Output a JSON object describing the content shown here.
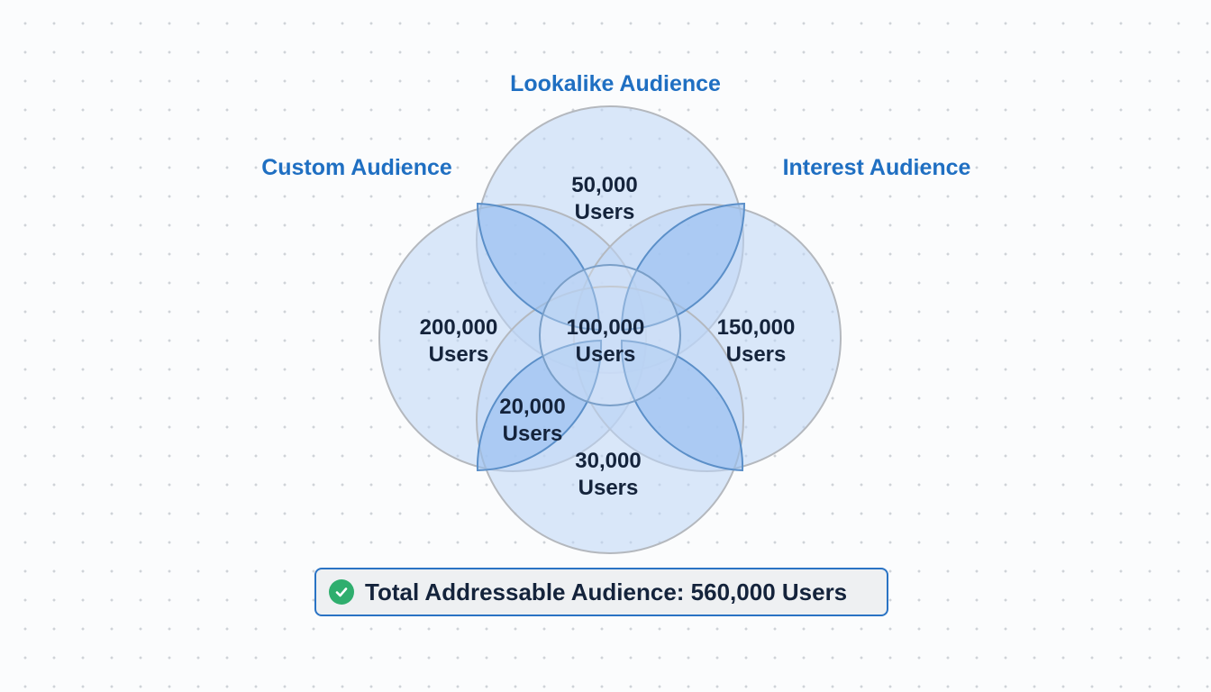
{
  "labels": {
    "top": "Lookalike Audience",
    "left": "Custom Audience",
    "right": "Interest Audience"
  },
  "values": {
    "top": {
      "n": "50,000",
      "u": "Users"
    },
    "left": {
      "n": "200,000",
      "u": "Users"
    },
    "center": {
      "n": "100,000",
      "u": "Users"
    },
    "right": {
      "n": "150,000",
      "u": "Users"
    },
    "bottom_left": {
      "n": "20,000",
      "u": "Users"
    },
    "bottom": {
      "n": "30,000",
      "u": "Users"
    }
  },
  "total": "Total Addressable Audience: 560,000 Users",
  "colors": {
    "label": "#1f6fc2",
    "fill": "#cfe1f8",
    "petal": "#a9c9f0",
    "stroke": "#5b8fc8",
    "check": "#2fae6e"
  }
}
